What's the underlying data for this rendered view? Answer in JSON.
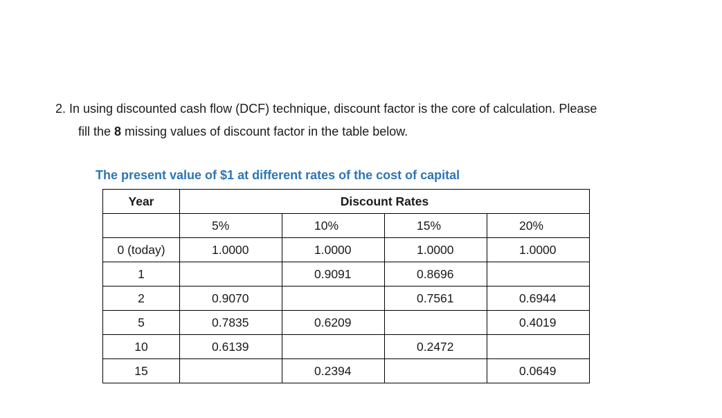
{
  "question": {
    "line1": "2. In using discounted cash flow (DCF) technique, discount factor is the core of calculation. Please",
    "line2_prefix": "fill the ",
    "line2_bold": "8",
    "line2_suffix": " missing values of discount factor in the table below."
  },
  "table": {
    "caption": "The present value of $1 at different rates of the cost of capital",
    "header_year": "Year",
    "header_rates": "Discount Rates",
    "rates": [
      "5%",
      "10%",
      "15%",
      "20%"
    ],
    "rows": [
      {
        "year": "0 (today)",
        "values": [
          "1.0000",
          "1.0000",
          "1.0000",
          "1.0000"
        ]
      },
      {
        "year": "1",
        "values": [
          "",
          "0.9091",
          "0.8696",
          ""
        ]
      },
      {
        "year": "2",
        "values": [
          "0.9070",
          "",
          "0.7561",
          "0.6944"
        ]
      },
      {
        "year": "5",
        "values": [
          "0.7835",
          "0.6209",
          "",
          "0.4019"
        ]
      },
      {
        "year": "10",
        "values": [
          "0.6139",
          "",
          "0.2472",
          ""
        ]
      },
      {
        "year": "15",
        "values": [
          "",
          "0.2394",
          "",
          "0.0649"
        ]
      }
    ]
  }
}
